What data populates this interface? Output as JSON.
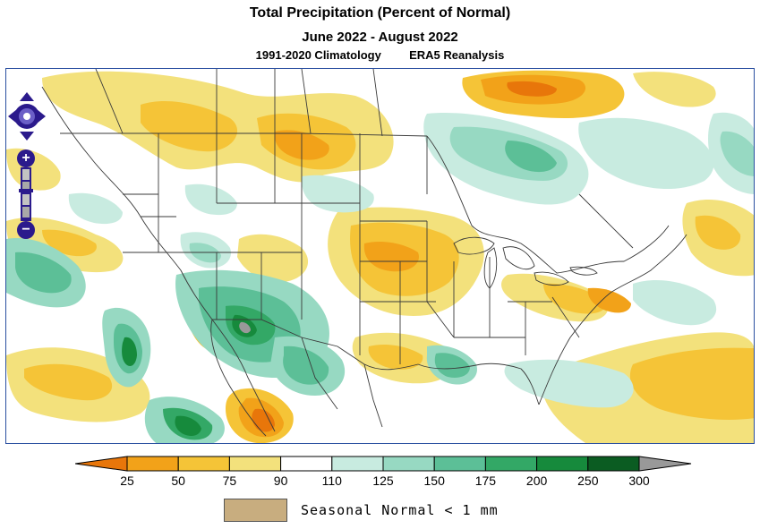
{
  "title": {
    "line1": "Total Precipitation (Percent of Normal)",
    "line2": "June 2022 - August 2022",
    "line3_left": "1991-2020 Climatology",
    "line3_right": "ERA5 Reanalysis"
  },
  "colors": {
    "frame": "#2a4fa0",
    "nav_control": "#2b1a8c",
    "land_mask_swatch": "#c8ad7f"
  },
  "colorbar": {
    "ticks": [
      "25",
      "50",
      "75",
      "90",
      "110",
      "125",
      "150",
      "175",
      "200",
      "250",
      "300"
    ],
    "bins": [
      {
        "label": "<25",
        "color": "#e8760a"
      },
      {
        "label": "25-50",
        "color": "#f2a219"
      },
      {
        "label": "50-75",
        "color": "#f5c437"
      },
      {
        "label": "75-90",
        "color": "#f3e17c"
      },
      {
        "label": "90-110",
        "color": "#ffffff"
      },
      {
        "label": "110-125",
        "color": "#c8ebe0"
      },
      {
        "label": "125-150",
        "color": "#97d9c2"
      },
      {
        "label": "150-175",
        "color": "#5cbf97"
      },
      {
        "label": "175-200",
        "color": "#33a866"
      },
      {
        "label": "200-250",
        "color": "#168a3c"
      },
      {
        "label": "250-300",
        "color": "#0b5c22"
      },
      {
        "label": ">300",
        "color": "#999999"
      }
    ]
  },
  "legend": {
    "text": "Seasonal Normal < 1 mm"
  },
  "map_controls": {
    "pan": "pan-control",
    "zoom_in": "+",
    "zoom_out": "−"
  }
}
